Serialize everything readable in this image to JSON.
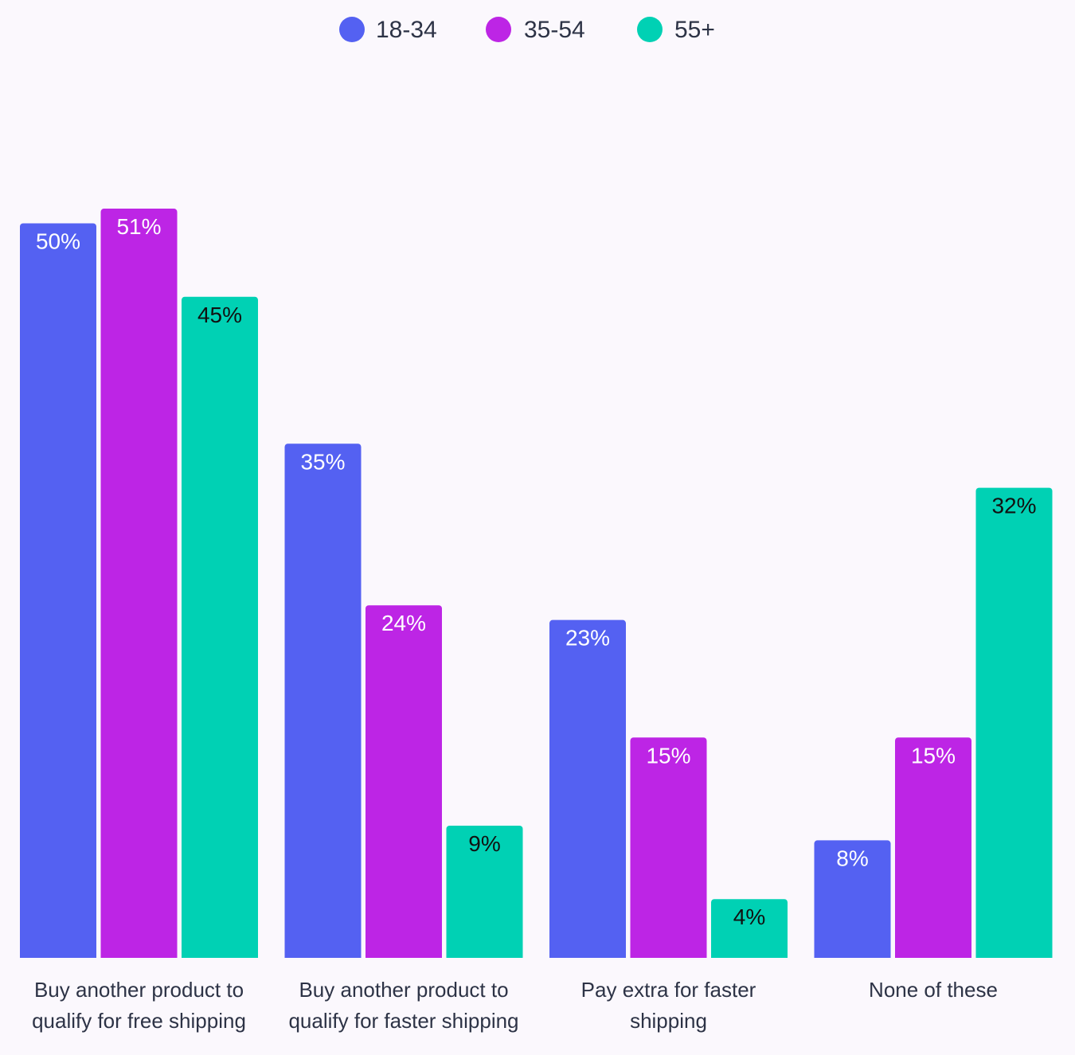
{
  "chart_data": {
    "type": "bar",
    "categories": [
      [
        "Buy another product to",
        "qualify for free shipping"
      ],
      [
        "Buy another product to",
        "qualify for faster shipping"
      ],
      [
        "Pay extra for faster",
        "shipping"
      ],
      [
        "None of these"
      ]
    ],
    "series": [
      {
        "name": "18-34",
        "color": "#5461f2",
        "label_color": "#ffffff",
        "values": [
          50,
          35,
          23,
          8
        ],
        "labels": [
          "50%",
          "35%",
          "23%",
          "8%"
        ]
      },
      {
        "name": "35-54",
        "color": "#bd25e5",
        "label_color": "#ffffff",
        "values": [
          51,
          24,
          15,
          15
        ],
        "labels": [
          "51%",
          "24%",
          "15%",
          "15%"
        ]
      },
      {
        "name": "55+",
        "color": "#00d1b4",
        "label_color": "#111111",
        "values": [
          45,
          9,
          4,
          32
        ],
        "labels": [
          "45%",
          "9%",
          "4%",
          "32%"
        ]
      }
    ],
    "title": "",
    "xlabel": "",
    "ylabel": "",
    "ylim": [
      0,
      55
    ],
    "grid": false,
    "legend": "top-center",
    "category_label_color": "#2d3346"
  }
}
